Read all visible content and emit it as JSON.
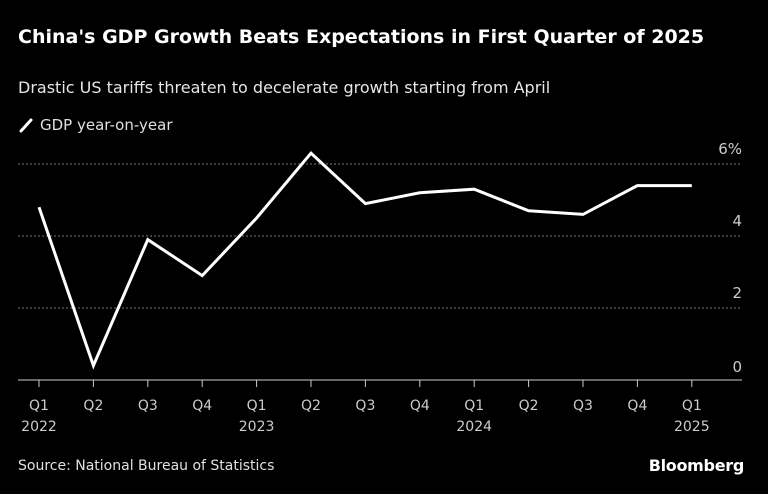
{
  "chart_data": {
    "type": "line",
    "title": "China's GDP Growth Beats Expectations in First Quarter of 2025",
    "subtitle": "Drastic US tariffs threaten to decelerate growth starting from April",
    "categories": [
      "Q1",
      "Q2",
      "Q3",
      "Q4",
      "Q1",
      "Q2",
      "Q3",
      "Q4",
      "Q1",
      "Q2",
      "Q3",
      "Q4",
      "Q1"
    ],
    "year_labels": [
      "2022",
      "",
      "",
      "",
      "2023",
      "",
      "",
      "",
      "2024",
      "",
      "",
      "",
      "2025"
    ],
    "series": [
      {
        "name": "GDP year-on-year",
        "values": [
          4.8,
          0.4,
          3.9,
          2.9,
          4.5,
          6.3,
          4.9,
          5.2,
          5.3,
          4.7,
          4.6,
          5.4,
          5.4
        ],
        "color": "#ffffff"
      }
    ],
    "yticks": [
      0,
      2,
      4,
      6
    ],
    "ytick_labels": [
      "0",
      "2",
      "4",
      "6%"
    ],
    "ylim": [
      0,
      6.6
    ],
    "y_axis_position": "right",
    "grid": true,
    "legend_position": "top-left"
  },
  "source": "Source: National Bureau of Statistics",
  "logo": "Bloomberg"
}
